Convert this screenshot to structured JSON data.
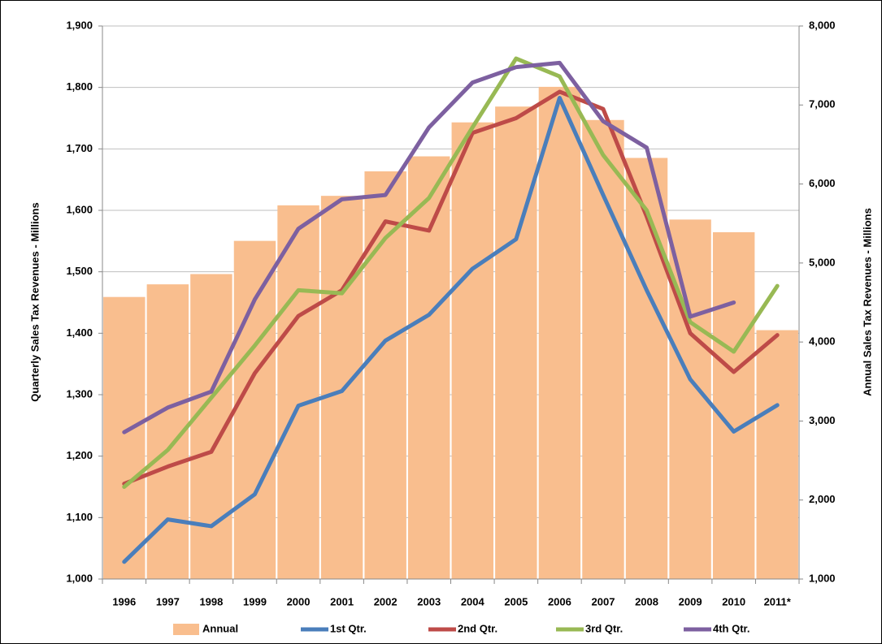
{
  "chart_data": {
    "type": "combo",
    "y_label": "Quarterly Sales Tax Revenues - Millions",
    "y2_label": "Annual Sales Tax Revenues - Millions",
    "categories": [
      "1996",
      "1997",
      "1998",
      "1999",
      "2000",
      "2001",
      "2002",
      "2003",
      "2004",
      "2005",
      "2006",
      "2007",
      "2008",
      "2009",
      "2010",
      "2011*"
    ],
    "ylim": [
      1000,
      1900
    ],
    "yticks": [
      {
        "value": 1000,
        "label": "1,000"
      },
      {
        "value": 1100,
        "label": "1,100"
      },
      {
        "value": 1200,
        "label": "1,200"
      },
      {
        "value": 1300,
        "label": "1,300"
      },
      {
        "value": 1400,
        "label": "1,400"
      },
      {
        "value": 1500,
        "label": "1,500"
      },
      {
        "value": 1600,
        "label": "1,600"
      },
      {
        "value": 1700,
        "label": "1,700"
      },
      {
        "value": 1800,
        "label": "1,800"
      },
      {
        "value": 1900,
        "label": "1,900"
      }
    ],
    "y2lim": [
      1000,
      8000
    ],
    "y2ticks": [
      {
        "value": 1000,
        "label": "1,000"
      },
      {
        "value": 2000,
        "label": "2,000"
      },
      {
        "value": 3000,
        "label": "3,000"
      },
      {
        "value": 4000,
        "label": "4,000"
      },
      {
        "value": 5000,
        "label": "5,000"
      },
      {
        "value": 6000,
        "label": "6,000"
      },
      {
        "value": 7000,
        "label": "7,000"
      },
      {
        "value": 8000,
        "label": "8,000"
      }
    ],
    "grid": true,
    "legend": "bottom",
    "series": [
      {
        "name": "Annual",
        "type": "bar",
        "axis": "y2",
        "color": "#f9be8e",
        "values": [
          4570,
          4730,
          4860,
          5280,
          5730,
          5850,
          6160,
          6350,
          6780,
          6980,
          7230,
          6810,
          6330,
          5550,
          5390,
          4150
        ]
      },
      {
        "name": "1st Qtr.",
        "type": "line",
        "color": "#4a7ebb",
        "values": [
          1028,
          1097,
          1086,
          1138,
          1282,
          1306,
          1388,
          1430,
          1505,
          1553,
          1783,
          1625,
          1470,
          1325,
          1240,
          1283
        ]
      },
      {
        "name": "2nd Qtr.",
        "type": "line",
        "color": "#be4b48",
        "values": [
          1155,
          1183,
          1207,
          1335,
          1428,
          1470,
          1582,
          1567,
          1726,
          1750,
          1793,
          1765,
          1590,
          1400,
          1337,
          1397
        ]
      },
      {
        "name": "3rd Qtr.",
        "type": "line",
        "color": "#98b954",
        "values": [
          1150,
          1210,
          1295,
          1380,
          1470,
          1465,
          1555,
          1620,
          1735,
          1847,
          1818,
          1690,
          1600,
          1418,
          1370,
          1477
        ]
      },
      {
        "name": "4th Qtr.",
        "type": "line",
        "color": "#7d60a0",
        "values": [
          1239,
          1279,
          1305,
          1455,
          1570,
          1618,
          1625,
          1735,
          1808,
          1833,
          1840,
          1745,
          1702,
          1427,
          1450,
          null
        ]
      }
    ]
  }
}
